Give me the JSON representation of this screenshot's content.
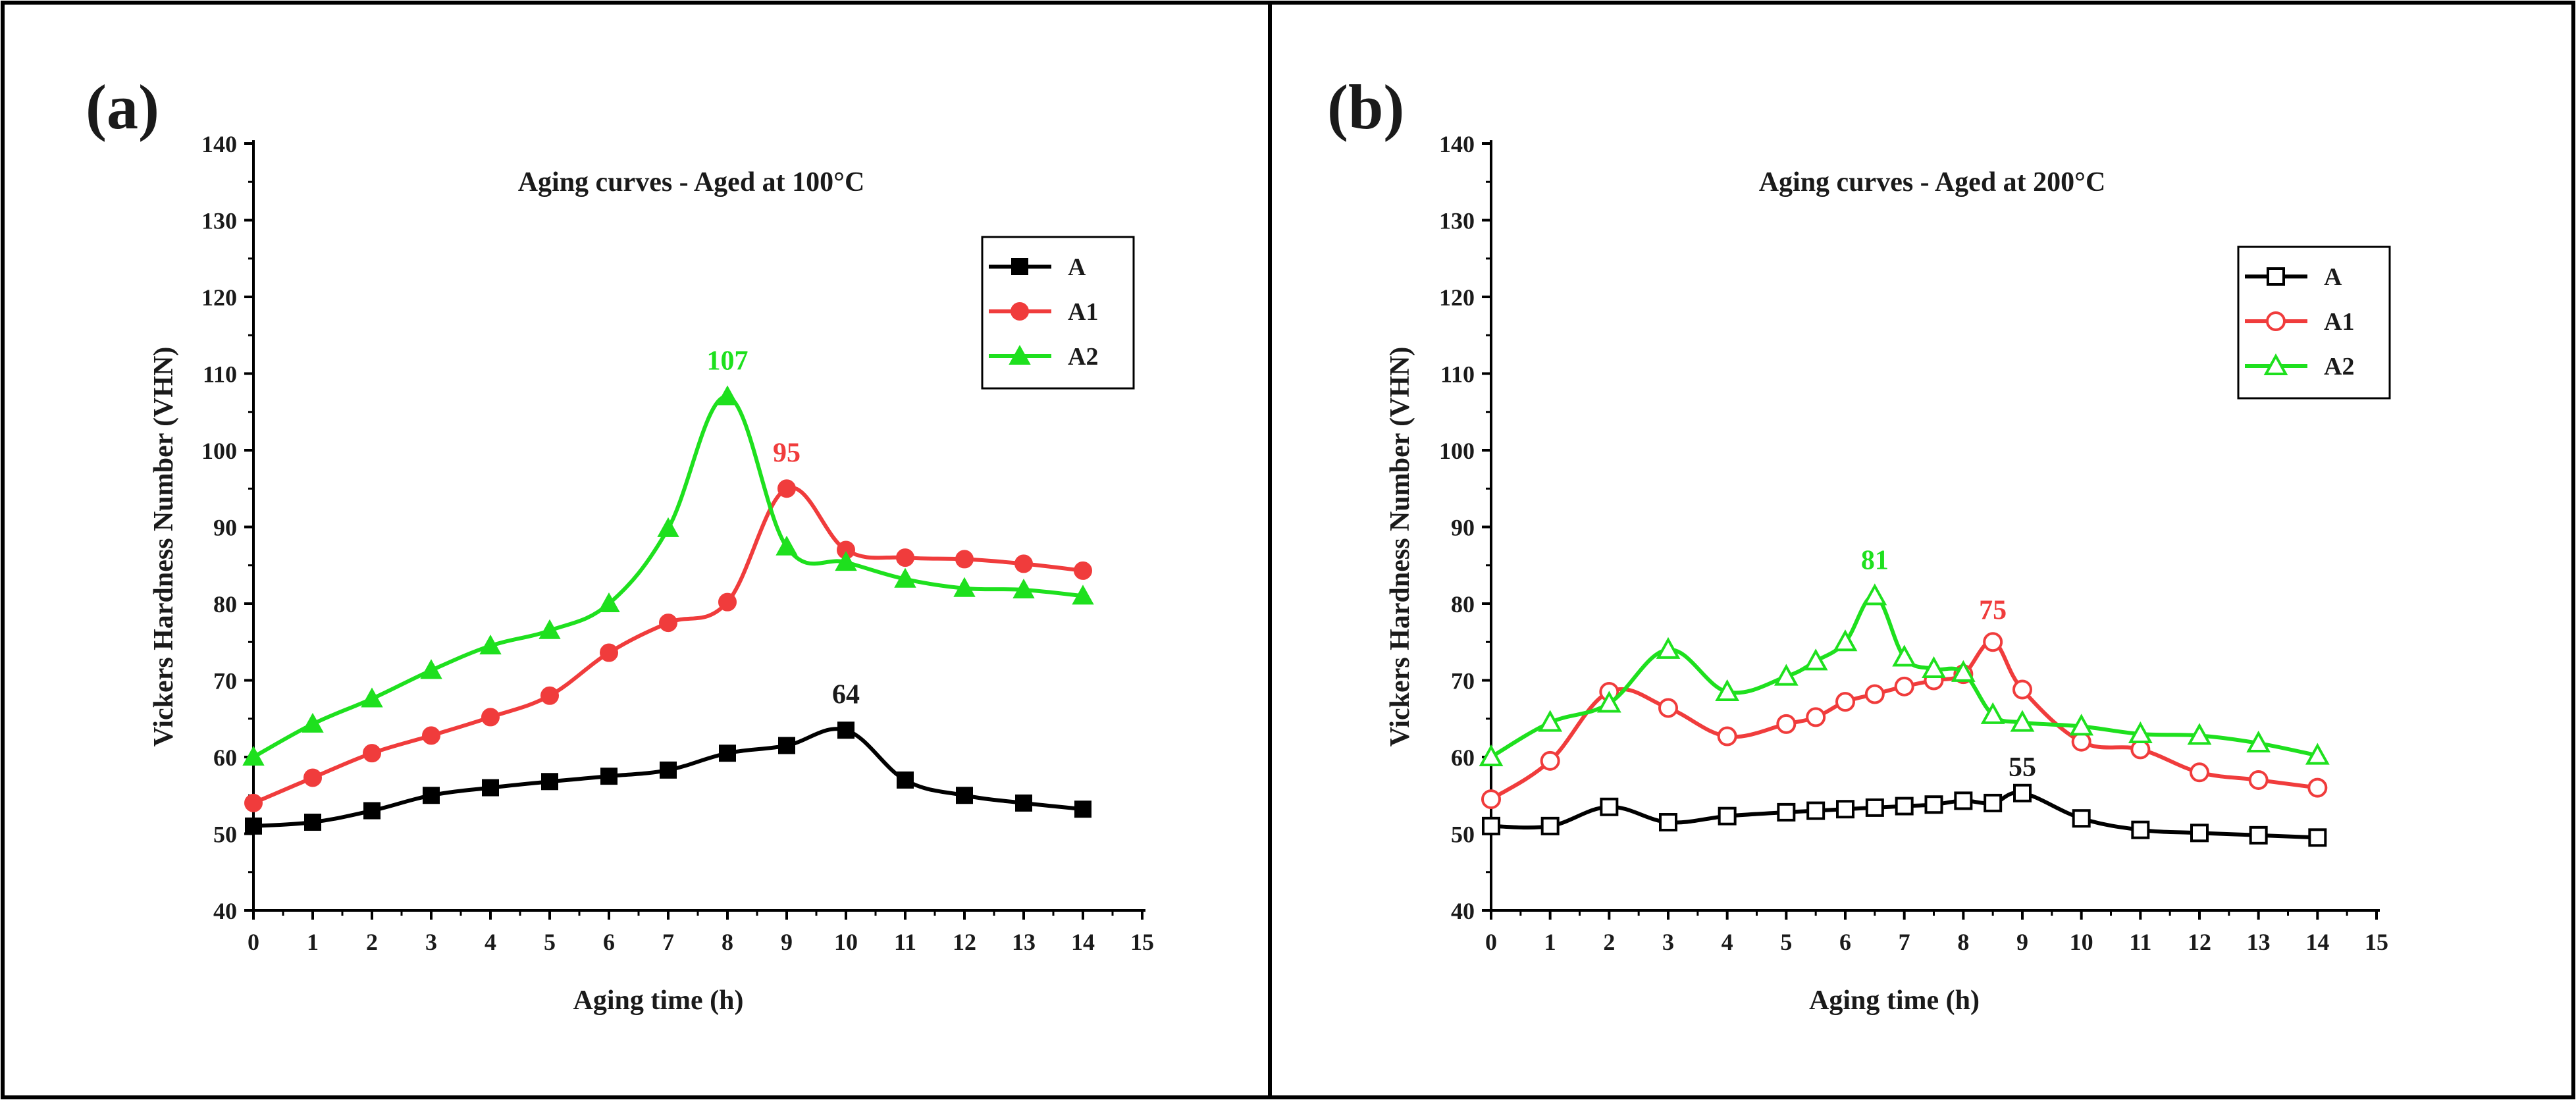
{
  "chart_data": [
    {
      "type": "line",
      "panel_label": "(a)",
      "title": "Aging curves - Aged at 100°C",
      "xlabel": "Aging time (h)",
      "ylabel": "Vickers Hardness Number (VHN)",
      "xlim": [
        0,
        15
      ],
      "ylim": [
        40,
        140
      ],
      "xticks": [
        "0",
        "1",
        "2",
        "3",
        "4",
        "5",
        "6",
        "7",
        "8",
        "9",
        "10",
        "11",
        "12",
        "13",
        "14",
        "15"
      ],
      "yticks": [
        "40",
        "50",
        "60",
        "70",
        "80",
        "90",
        "100",
        "110",
        "120",
        "130",
        "140"
      ],
      "grid": false,
      "legend_position": "top-right",
      "marker_fill": "filled",
      "series": [
        {
          "name": "A",
          "color": "#000000",
          "marker": "square",
          "x": [
            0,
            1,
            2,
            3,
            4,
            5,
            6,
            7,
            8,
            9,
            10,
            11,
            12,
            13,
            14
          ],
          "y": [
            51,
            51.5,
            53,
            55,
            56,
            56.8,
            57.5,
            58.3,
            60.5,
            61.5,
            63.5,
            57,
            55,
            54,
            53.2
          ]
        },
        {
          "name": "A1",
          "color": "#f03c3c",
          "marker": "circle",
          "x": [
            0,
            1,
            2,
            3,
            4,
            5,
            6,
            7,
            8,
            9,
            10,
            11,
            12,
            13,
            14
          ],
          "y": [
            54,
            57.3,
            60.5,
            62.8,
            65.2,
            68,
            73.6,
            77.5,
            80.2,
            95,
            87,
            86,
            85.8,
            85.2,
            84.3
          ]
        },
        {
          "name": "A2",
          "color": "#1ee01e",
          "marker": "triangle",
          "x": [
            0,
            1,
            2,
            3,
            4,
            5,
            6,
            7,
            8,
            9,
            10,
            11,
            12,
            13,
            14
          ],
          "y": [
            60,
            64.3,
            67.6,
            71.3,
            74.5,
            76.5,
            80,
            89.8,
            107,
            87.4,
            85.4,
            83.2,
            82,
            81.8,
            81
          ]
        }
      ],
      "annotations": [
        {
          "text": "107",
          "x": 8,
          "y": 110.5,
          "color": "#1ee01e"
        },
        {
          "text": "95",
          "x": 9,
          "y": 98.5,
          "color": "#f03c3c"
        },
        {
          "text": "64",
          "x": 10,
          "y": 67,
          "color": "#1a1a1a"
        }
      ]
    },
    {
      "type": "line",
      "panel_label": "(b)",
      "title": "Aging curves - Aged at 200°C",
      "xlabel": "Aging time (h)",
      "ylabel": "Vickers Hardness Number (VHN)",
      "xlim": [
        0,
        15
      ],
      "ylim": [
        40,
        140
      ],
      "xticks": [
        "0",
        "1",
        "2",
        "3",
        "4",
        "5",
        "6",
        "7",
        "8",
        "9",
        "10",
        "11",
        "12",
        "13",
        "14",
        "15"
      ],
      "yticks": [
        "40",
        "50",
        "60",
        "70",
        "80",
        "90",
        "100",
        "110",
        "120",
        "130",
        "140"
      ],
      "grid": false,
      "legend_position": "top-right",
      "marker_fill": "hollow",
      "series": [
        {
          "name": "A",
          "color": "#000000",
          "marker": "square",
          "x": [
            0,
            1,
            2,
            3,
            4,
            5,
            5.5,
            6,
            6.5,
            7,
            7.5,
            8,
            8.5,
            9,
            10,
            11,
            12,
            13,
            14
          ],
          "y": [
            51,
            51,
            53.5,
            51.5,
            52.3,
            52.8,
            53,
            53.2,
            53.4,
            53.6,
            53.8,
            54.3,
            54,
            55.3,
            52,
            50.5,
            50.1,
            49.8,
            49.5
          ]
        },
        {
          "name": "A1",
          "color": "#f03c3c",
          "marker": "circle",
          "x": [
            0,
            1,
            2,
            3,
            4,
            5,
            5.5,
            6,
            6.5,
            7,
            7.5,
            8,
            8.5,
            9,
            10,
            11,
            12,
            13,
            14
          ],
          "y": [
            54.5,
            59.5,
            68.5,
            66.4,
            62.7,
            64.3,
            65.2,
            67.2,
            68.2,
            69.2,
            70,
            70.8,
            75,
            68.8,
            62,
            61,
            58,
            57,
            56
          ]
        },
        {
          "name": "A2",
          "color": "#1ee01e",
          "marker": "triangle",
          "x": [
            0,
            1,
            2,
            3,
            4,
            5,
            5.5,
            6,
            6.5,
            7,
            7.5,
            8,
            8.5,
            9,
            10,
            11,
            12,
            13,
            14
          ],
          "y": [
            60,
            64.5,
            67,
            74,
            68.5,
            70.5,
            72.5,
            75,
            81,
            73,
            71.5,
            71,
            65.5,
            64.5,
            64,
            63,
            62.8,
            61.8,
            60.2
          ]
        }
      ],
      "annotations": [
        {
          "text": "81",
          "x": 6.5,
          "y": 84.5,
          "color": "#1ee01e"
        },
        {
          "text": "75",
          "x": 8.5,
          "y": 78,
          "color": "#f03c3c"
        },
        {
          "text": "55",
          "x": 9,
          "y": 57.5,
          "color": "#1a1a1a"
        }
      ]
    }
  ]
}
